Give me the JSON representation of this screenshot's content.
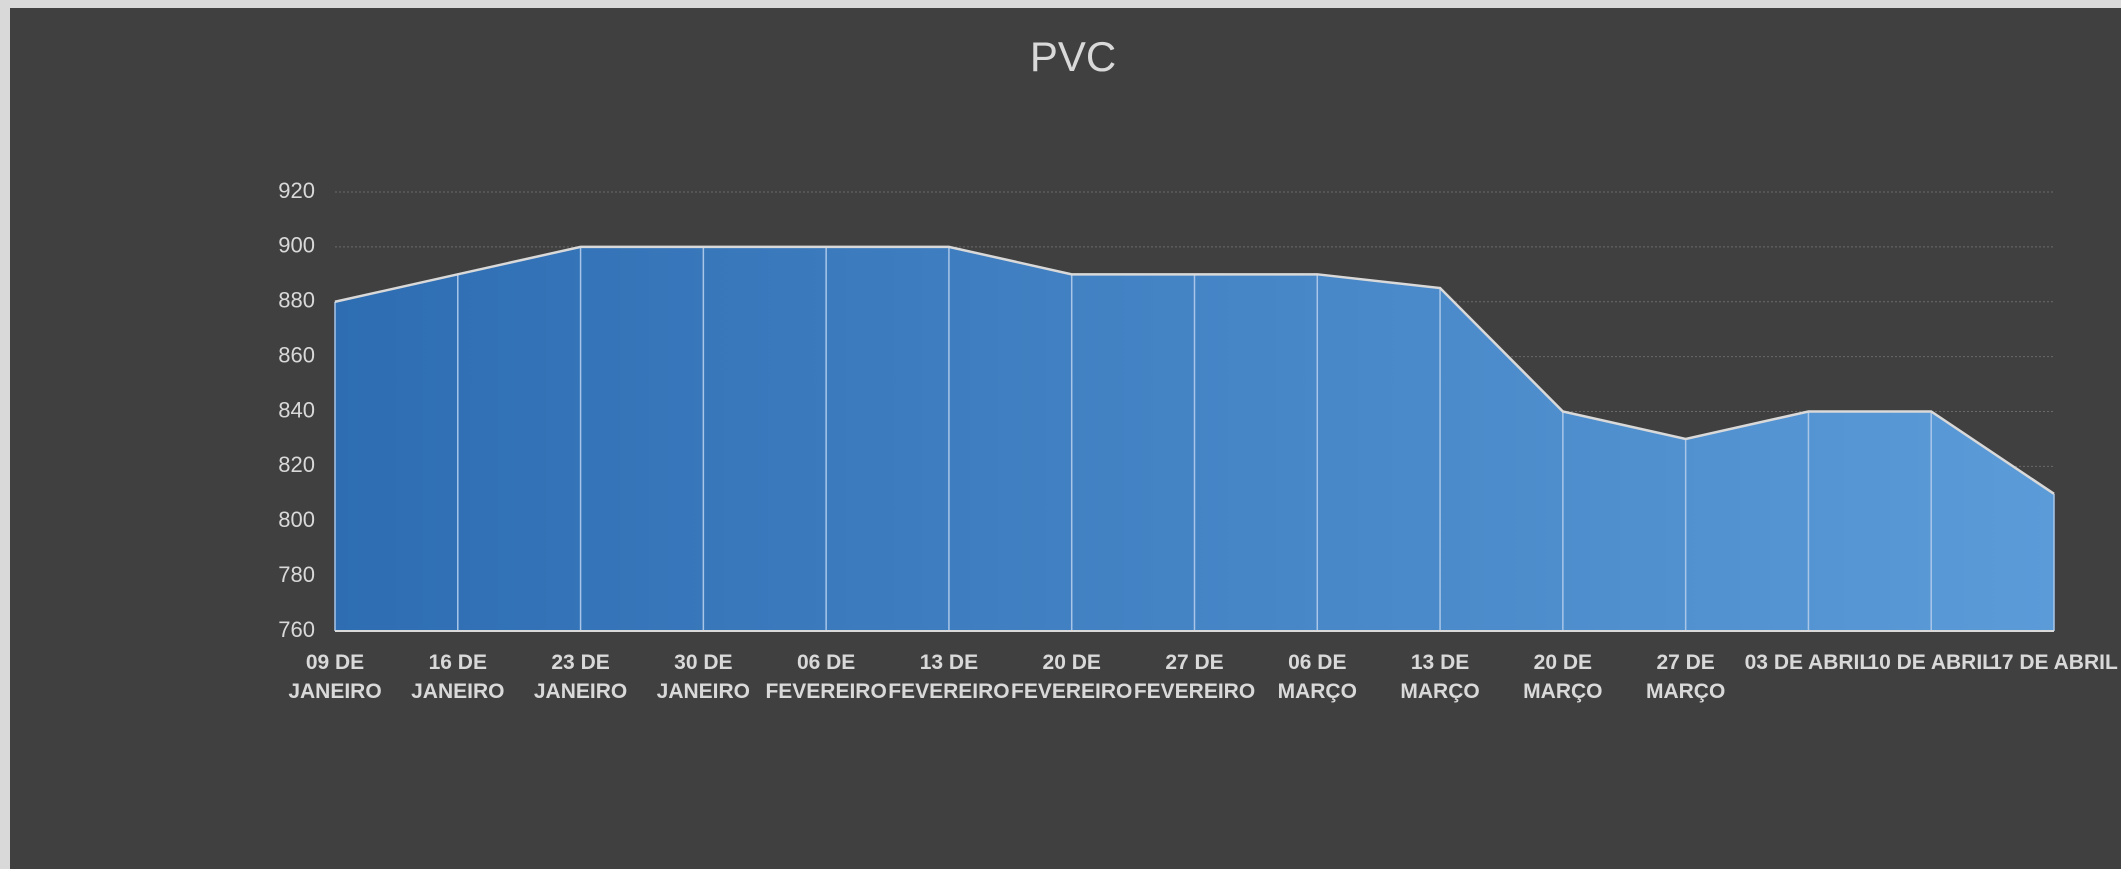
{
  "chart_data": {
    "type": "area",
    "title": "PVC",
    "categories": [
      "09 DE JANEIRO",
      "16 DE JANEIRO",
      "23 DE JANEIRO",
      "30 DE JANEIRO",
      "06 DE FEVEREIRO",
      "13 DE FEVEREIRO",
      "20 DE FEVEREIRO",
      "27 DE FEVEREIRO",
      "06 DE MARÇO",
      "13 DE MARÇO",
      "20 DE MARÇO",
      "27 DE MARÇO",
      "03 DE ABRIL",
      "10 DE ABRIL",
      "17 DE ABRIL"
    ],
    "values": [
      880,
      890,
      900,
      900,
      900,
      900,
      890,
      890,
      890,
      885,
      840,
      830,
      840,
      840,
      810
    ],
    "gradient": [
      "#2e6db2",
      "#5b9bd8"
    ],
    "line_color": "#d9d9d9",
    "ylim": [
      760,
      920
    ],
    "yticks": [
      760,
      780,
      800,
      820,
      840,
      860,
      880,
      900,
      920
    ],
    "grid": true
  }
}
